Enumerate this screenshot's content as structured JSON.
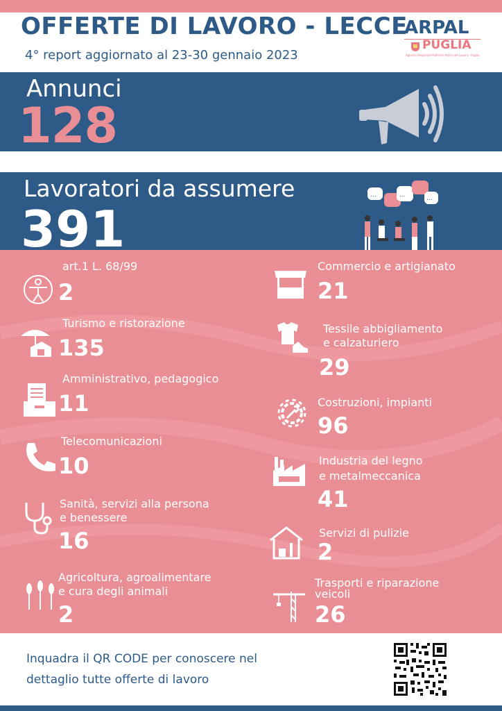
{
  "header": {
    "title": "OFFERTE DI LAVORO - LECCE",
    "subtitle": "4° report aggiornato al 23-30 gennaio 2023",
    "logo_main": "ARPAL",
    "logo_sub": "PUGLIA",
    "logo_tiny": "Agenzia Regionale Politiche Attive del Lavoro - Puglia"
  },
  "annunci": {
    "label": "Annunci",
    "value": "128"
  },
  "lavoratori": {
    "label": "Lavoratori da assumere",
    "value": "391"
  },
  "categories_left": [
    {
      "label": "art.1 L. 68/99",
      "value": "2",
      "icon": "accessibility-icon"
    },
    {
      "label": "Turismo e ristorazione",
      "value": "135",
      "icon": "beach-umbrella-icon"
    },
    {
      "label": "Amministrativo, pedagogico",
      "value": "11",
      "icon": "documents-folder-icon"
    },
    {
      "label": "Telecomunicazioni",
      "value": "10",
      "icon": "phone-icon"
    },
    {
      "label_line1": "Sanità, servizi alla persona",
      "label_line2": "e benessere",
      "value": "16",
      "icon": "stethoscope-icon"
    },
    {
      "label_line1": "Agricoltura,  agroalimentare",
      "label_line2": "e cura degli animali",
      "value": "2",
      "icon": "wheat-icon"
    }
  ],
  "categories_right": [
    {
      "label": "Commercio e artigianato",
      "value": "21",
      "icon": "market-stall-icon"
    },
    {
      "label_line1": "Tessile abbigliamento",
      "label_line2": "e calzaturiero",
      "value": "29",
      "icon": "tshirt-shoe-icon"
    },
    {
      "label": "Costruzioni, impianti",
      "value": "96",
      "icon": "gear-wrench-icon"
    },
    {
      "label_line1": "Industria del legno",
      "label_line2": "e metalmeccanica",
      "value": "41",
      "icon": "factory-icon"
    },
    {
      "label": "Servizi di pulizie",
      "value": "2",
      "icon": "cleaning-house-icon"
    },
    {
      "label_line1": "Trasporti e riparazione",
      "label_line2": "veicoli",
      "value": "26",
      "icon": "crane-icon"
    }
  ],
  "footer": {
    "qr_line1": "Inquadra il QR CODE per conoscere nel",
    "qr_line2": "dettaglio tutte offerte di lavoro"
  },
  "colors": {
    "navy": "#2d5a87",
    "pink": "#ea8e95",
    "white": "#ffffff"
  }
}
